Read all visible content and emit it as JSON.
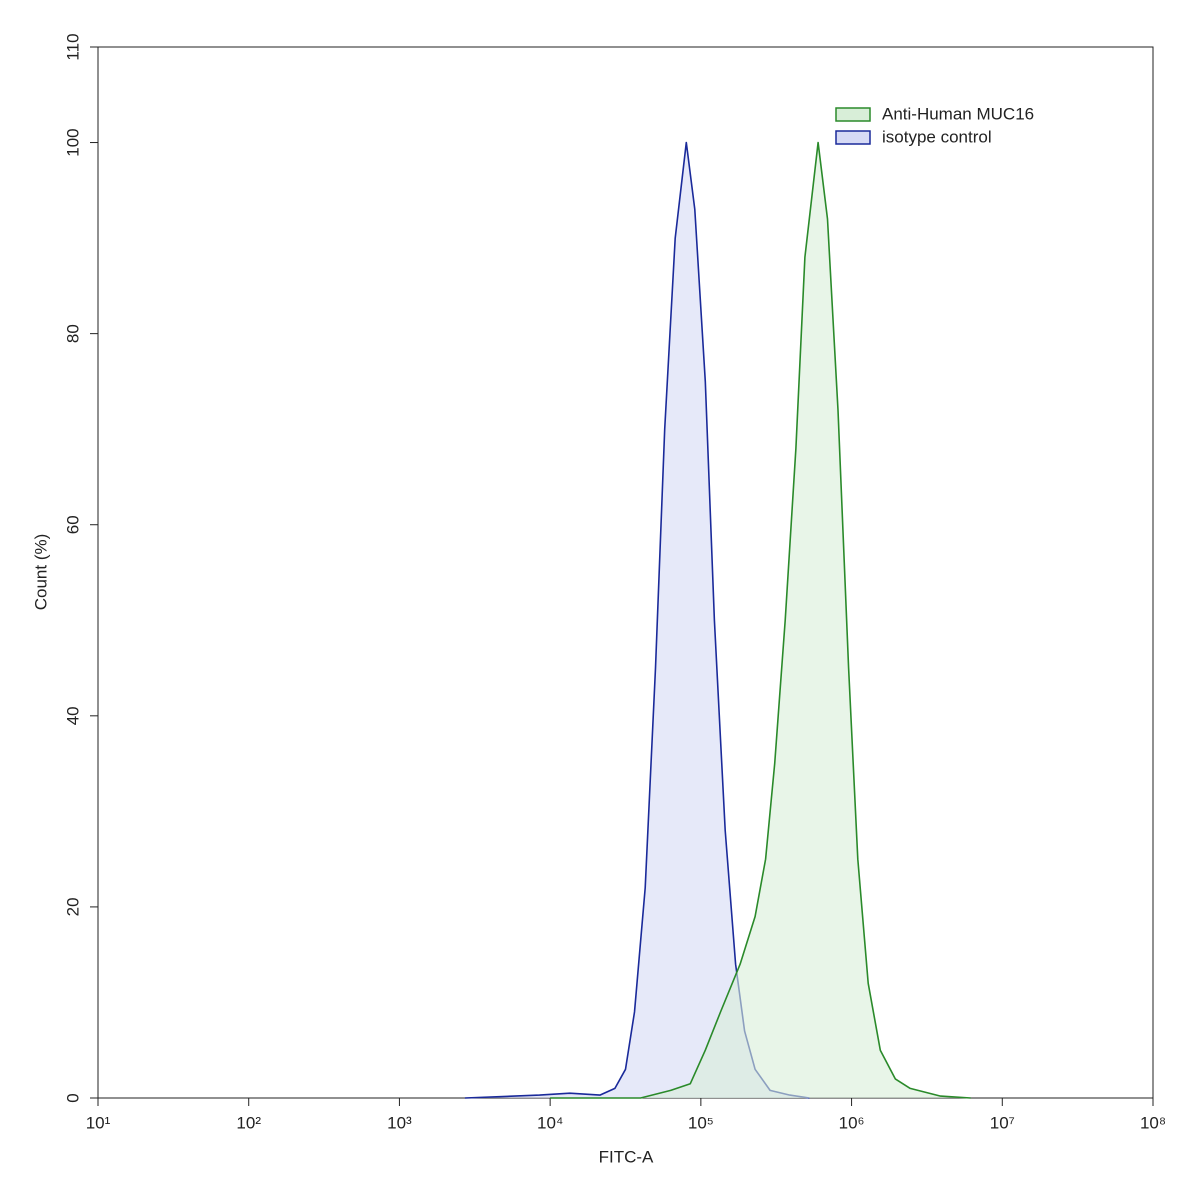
{
  "chart_data": {
    "type": "histogram-line",
    "xlabel": "FITC-A",
    "ylabel": "Count  (%)",
    "xscale": "log",
    "xlim": [
      10,
      100000000
    ],
    "xticks": [
      {
        "value": 10,
        "label": "10¹"
      },
      {
        "value": 100,
        "label": "10²"
      },
      {
        "value": 1000,
        "label": "10³"
      },
      {
        "value": 10000,
        "label": "10⁴"
      },
      {
        "value": 100000,
        "label": "10⁵"
      },
      {
        "value": 1000000,
        "label": "10⁶"
      },
      {
        "value": 10000000,
        "label": "10⁷"
      },
      {
        "value": 100000000,
        "label": "10⁸"
      }
    ],
    "ylim": [
      0,
      110
    ],
    "yticks": [
      0,
      20,
      40,
      60,
      80,
      100,
      110
    ],
    "legend": "upper right",
    "series": [
      {
        "name": "Anti-Human MUC16",
        "color": "#2a8a2a",
        "fill": "#d8eed8",
        "x": [
          10000,
          39800,
          63100,
          85100,
          107000,
          135000,
          182000,
          229000,
          269000,
          309000,
          363000,
          427000,
          490000,
          600000,
          692000,
          813000,
          955000,
          1100000,
          1290000,
          1550000,
          1950000,
          2450000,
          3890000,
          6170000
        ],
        "values": [
          0,
          0,
          0.8,
          1.5,
          5,
          9,
          14,
          19,
          25,
          35,
          50,
          68,
          88,
          100,
          92,
          72,
          45,
          25,
          12,
          5,
          2,
          1,
          0.2,
          0
        ]
      },
      {
        "name": "isotype control",
        "color": "#1a2a9a",
        "fill": "#d6daf5",
        "x": [
          2720,
          8500,
          13500,
          21400,
          26900,
          31600,
          36300,
          42700,
          50000,
          57600,
          67600,
          80000,
          91200,
          107000,
          123000,
          145000,
          170000,
          195000,
          229000,
          288000,
          389000,
          525000
        ],
        "values": [
          0,
          0.3,
          0.5,
          0.3,
          1,
          3,
          9,
          22,
          45,
          70,
          90,
          100,
          93,
          75,
          50,
          28,
          14,
          7,
          3,
          0.8,
          0.3,
          0
        ]
      }
    ]
  }
}
